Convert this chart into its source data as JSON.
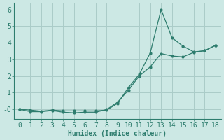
{
  "line1_x": [
    0,
    1,
    2,
    3,
    4,
    5,
    6,
    7,
    8,
    9,
    10,
    11,
    12,
    13,
    14,
    15,
    16,
    17,
    18
  ],
  "line1_y": [
    0.0,
    -0.15,
    -0.15,
    -0.08,
    -0.18,
    -0.22,
    -0.18,
    -0.18,
    -0.02,
    0.42,
    1.15,
    2.0,
    2.55,
    3.35,
    3.2,
    3.15,
    3.42,
    3.52,
    3.85
  ],
  "line2_x": [
    0,
    1,
    2,
    3,
    4,
    5,
    6,
    7,
    8,
    9,
    10,
    11,
    12,
    13,
    14,
    15,
    16,
    17,
    18
  ],
  "line2_y": [
    0.0,
    -0.05,
    -0.12,
    -0.05,
    -0.1,
    -0.1,
    -0.1,
    -0.1,
    -0.05,
    0.35,
    1.3,
    2.1,
    3.38,
    6.0,
    4.3,
    3.8,
    3.45,
    3.52,
    3.85
  ],
  "color": "#2e7d6e",
  "bg_color": "#cce8e4",
  "grid_color": "#aaccc8",
  "xlabel": "Humidex (Indice chaleur)",
  "ylim": [
    -0.6,
    6.4
  ],
  "xlim": [
    -0.5,
    18.5
  ],
  "yticks": [
    0,
    1,
    2,
    3,
    4,
    5,
    6
  ],
  "xticks": [
    0,
    1,
    2,
    3,
    4,
    5,
    6,
    7,
    8,
    9,
    10,
    11,
    12,
    13,
    14,
    15,
    16,
    17,
    18
  ],
  "xlabel_fontsize": 7,
  "tick_fontsize": 7
}
